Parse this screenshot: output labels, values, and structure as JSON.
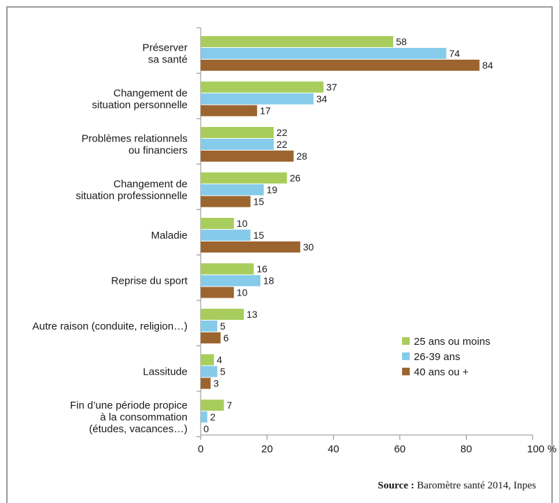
{
  "chart_data": {
    "type": "bar",
    "orientation": "horizontal",
    "categories": [
      [
        "Préserver",
        "sa santé"
      ],
      [
        "Changement de",
        "situation personnelle"
      ],
      [
        "Problèmes relationnels",
        "ou financiers"
      ],
      [
        "Changement de",
        "situation professionnelle"
      ],
      [
        "Maladie"
      ],
      [
        "Reprise du sport"
      ],
      [
        "Autre raison (conduite, religion…)"
      ],
      [
        "Lassitude"
      ],
      [
        "Fin d’une période propice",
        "à la consommation",
        "(études, vacances…)"
      ]
    ],
    "series": [
      {
        "name": "25 ans ou moins",
        "color": "#a8cd5c",
        "values": [
          58,
          37,
          22,
          26,
          10,
          16,
          13,
          4,
          7
        ]
      },
      {
        "name": "26-39 ans",
        "color": "#86cbe9",
        "values": [
          74,
          34,
          22,
          19,
          15,
          18,
          5,
          5,
          2
        ]
      },
      {
        "name": "40 ans ou +",
        "color": "#9c6530",
        "values": [
          84,
          17,
          28,
          15,
          30,
          10,
          6,
          3,
          0
        ]
      }
    ],
    "xlim": [
      0,
      100
    ],
    "xticks": [
      "0",
      "20",
      "40",
      "60",
      "80",
      "100 %"
    ],
    "legend_position": "bottom-right",
    "grid": false
  },
  "source": {
    "label": "Source :",
    "text": " Baromètre santé 2014, Inpes"
  }
}
